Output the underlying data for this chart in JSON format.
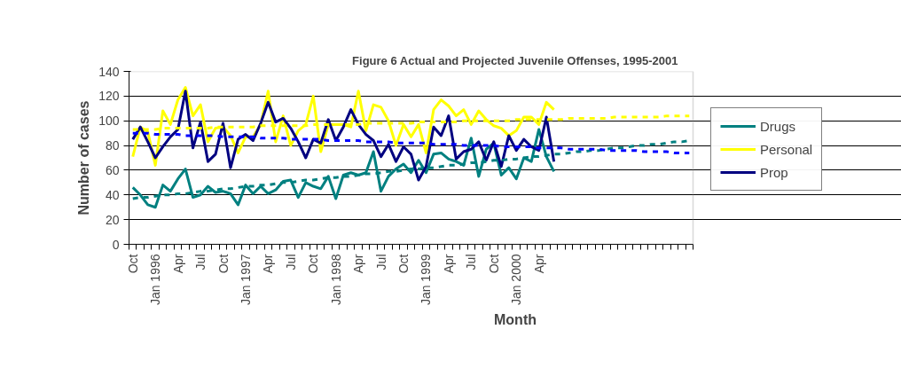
{
  "chart_data": {
    "type": "line",
    "title": "Figure 6 Actual and Projected Juvenile Offenses, 1995-2001",
    "xlabel": "Month",
    "ylabel": "Number of cases",
    "categories": [
      "Oct",
      null,
      null,
      "Jan 1996",
      null,
      null,
      "Apr",
      null,
      null,
      "Jul",
      null,
      null,
      "Oct",
      null,
      null,
      "Jan 1997",
      null,
      null,
      "Apr",
      null,
      null,
      "Jul",
      null,
      null,
      "Oct",
      null,
      null,
      "Jan 1998",
      null,
      null,
      "Apr",
      null,
      null,
      "Jul",
      null,
      null,
      "Oct",
      null,
      null,
      "Jan 1999",
      null,
      null,
      "Apr",
      null,
      null,
      "Jul",
      null,
      null,
      "Oct",
      null,
      null,
      "Jan 2000",
      null,
      null,
      "Apr",
      null,
      null,
      null,
      null,
      null,
      null,
      null,
      null,
      null,
      null,
      null,
      null,
      null,
      null,
      null,
      null,
      null,
      null,
      null,
      null
    ],
    "ylim": [
      0,
      140
    ],
    "yticks": [
      0,
      20,
      40,
      60,
      80,
      100,
      120,
      140
    ],
    "grid": "y",
    "legend": "right",
    "line_style": "solid",
    "series": [
      {
        "name": "Drugs",
        "color": "#008080",
        "values": [
          46,
          40,
          32,
          30,
          48,
          43,
          53,
          61,
          38,
          40,
          47,
          42,
          43,
          41,
          32,
          48,
          41,
          47,
          41,
          44,
          51,
          52,
          38,
          50,
          47,
          45,
          55,
          37,
          56,
          58,
          56,
          58,
          75,
          43,
          55,
          61,
          65,
          58,
          68,
          58,
          73,
          74,
          69,
          67,
          64,
          86,
          55,
          77,
          82,
          56,
          62,
          53,
          70,
          67,
          93,
          71,
          59,
          null,
          null,
          null,
          null,
          null,
          null,
          null,
          null,
          null,
          null,
          null,
          null,
          null,
          null,
          null,
          null,
          null,
          null
        ]
      },
      {
        "name": "Personal",
        "color": "#ffff00",
        "values": [
          71,
          95,
          91,
          64,
          108,
          97,
          117,
          127,
          104,
          113,
          83,
          94,
          95,
          88,
          74,
          87,
          87,
          97,
          124,
          83,
          104,
          80,
          92,
          97,
          120,
          75,
          97,
          97,
          97,
          95,
          124,
          92,
          113,
          111,
          100,
          80,
          97,
          87,
          97,
          74,
          109,
          117,
          112,
          104,
          109,
          97,
          108,
          101,
          96,
          94,
          88,
          92,
          103,
          103,
          97,
          115,
          109,
          null,
          null,
          null,
          null,
          null,
          null,
          null,
          null,
          null,
          null,
          null,
          null,
          null,
          null,
          null,
          null,
          null,
          null
        ]
      },
      {
        "name": "Prop",
        "color": "#000080",
        "values": [
          85,
          95,
          83,
          70,
          79,
          87,
          93,
          124,
          78,
          99,
          67,
          73,
          98,
          62,
          85,
          89,
          84,
          98,
          115,
          99,
          102,
          94,
          83,
          70,
          85,
          82,
          101,
          84,
          95,
          109,
          97,
          89,
          84,
          71,
          81,
          67,
          79,
          73,
          52,
          63,
          95,
          88,
          104,
          69,
          75,
          77,
          83,
          68,
          83,
          63,
          88,
          76,
          85,
          79,
          76,
          103,
          67,
          null,
          null,
          null,
          null,
          null,
          null,
          null,
          null,
          null,
          null,
          null,
          null,
          null,
          null,
          null,
          null,
          null,
          null
        ]
      },
      {
        "color": "#008080",
        "line_style": "dashed",
        "values": [
          37,
          38,
          38,
          39,
          40,
          40,
          41,
          41,
          42,
          43,
          43,
          44,
          45,
          45,
          46,
          47,
          47,
          48,
          48,
          49,
          50,
          50,
          51,
          52,
          52,
          53,
          54,
          54,
          55,
          55,
          56,
          57,
          57,
          58,
          59,
          59,
          60,
          61,
          61,
          62,
          62,
          63,
          64,
          64,
          65,
          66,
          66,
          67,
          68,
          68,
          69,
          69,
          70,
          71,
          71,
          72,
          73,
          73,
          74,
          75,
          75,
          76,
          76,
          77,
          78,
          78,
          79,
          80,
          80,
          81,
          81,
          82,
          83,
          83,
          84
        ]
      },
      {
        "color": "#ffff00",
        "line_style": "dashed",
        "values": [
          93,
          93,
          93,
          93,
          94,
          94,
          94,
          94,
          94,
          94,
          94,
          95,
          95,
          95,
          95,
          95,
          95,
          96,
          96,
          96,
          96,
          96,
          96,
          96,
          97,
          97,
          97,
          97,
          97,
          97,
          97,
          98,
          98,
          98,
          98,
          98,
          98,
          98,
          99,
          99,
          99,
          99,
          99,
          99,
          100,
          100,
          100,
          100,
          100,
          100,
          100,
          101,
          101,
          101,
          101,
          101,
          101,
          101,
          102,
          102,
          102,
          102,
          102,
          102,
          103,
          103,
          103,
          103,
          103,
          103,
          103,
          104,
          104,
          104,
          104
        ]
      },
      {
        "color": "#0000ff",
        "line_style": "dashed",
        "values": [
          90,
          90,
          90,
          89,
          89,
          89,
          89,
          88,
          88,
          88,
          88,
          88,
          87,
          87,
          87,
          87,
          87,
          86,
          86,
          86,
          86,
          85,
          85,
          85,
          85,
          85,
          84,
          84,
          84,
          84,
          84,
          83,
          83,
          83,
          83,
          82,
          82,
          82,
          82,
          82,
          81,
          81,
          81,
          81,
          80,
          80,
          80,
          80,
          80,
          79,
          79,
          79,
          79,
          79,
          78,
          78,
          78,
          78,
          77,
          77,
          77,
          77,
          77,
          76,
          76,
          76,
          76,
          76,
          75,
          75,
          75,
          75,
          74,
          74,
          74
        ]
      }
    ]
  }
}
